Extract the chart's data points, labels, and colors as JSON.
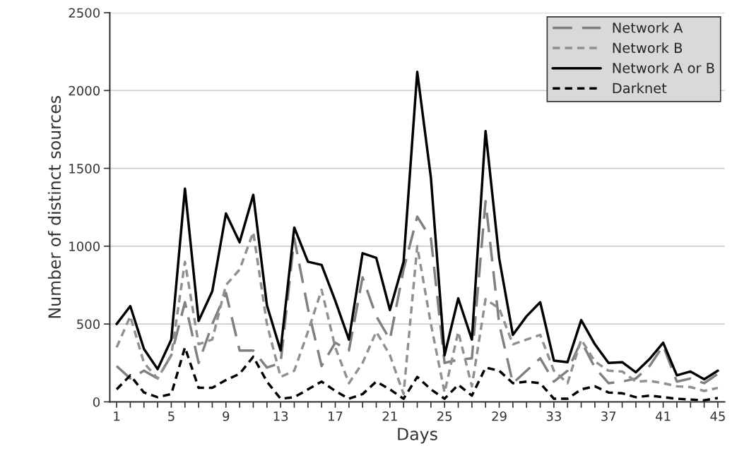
{
  "chart_data": {
    "type": "line",
    "xlabel": "Days",
    "ylabel": "Number of distinct sources",
    "x": [
      1,
      2,
      3,
      4,
      5,
      6,
      7,
      8,
      9,
      10,
      11,
      12,
      13,
      14,
      15,
      16,
      17,
      18,
      19,
      20,
      21,
      22,
      23,
      24,
      25,
      26,
      27,
      28,
      29,
      30,
      31,
      32,
      33,
      34,
      35,
      36,
      37,
      38,
      39,
      40,
      41,
      42,
      43,
      44,
      45
    ],
    "xlim": [
      0.5,
      45.5
    ],
    "xticks": [
      1,
      {
        "value": 2,
        "label": null
      },
      {
        "value": 3,
        "label": null
      },
      {
        "value": 4,
        "label": null
      },
      5,
      {
        "value": 6,
        "label": null
      },
      {
        "value": 7,
        "label": null
      },
      {
        "value": 8,
        "label": null
      },
      9,
      {
        "value": 10,
        "label": null
      },
      {
        "value": 11,
        "label": null
      },
      {
        "value": 12,
        "label": null
      },
      13,
      {
        "value": 14,
        "label": null
      },
      {
        "value": 15,
        "label": null
      },
      {
        "value": 16,
        "label": null
      },
      17,
      {
        "value": 18,
        "label": null
      },
      {
        "value": 19,
        "label": null
      },
      {
        "value": 20,
        "label": null
      },
      21,
      {
        "value": 22,
        "label": null
      },
      {
        "value": 23,
        "label": null
      },
      {
        "value": 24,
        "label": null
      },
      25,
      {
        "value": 26,
        "label": null
      },
      {
        "value": 27,
        "label": null
      },
      {
        "value": 28,
        "label": null
      },
      29,
      {
        "value": 30,
        "label": null
      },
      {
        "value": 31,
        "label": null
      },
      {
        "value": 32,
        "label": null
      },
      33,
      {
        "value": 34,
        "label": null
      },
      {
        "value": 35,
        "label": null
      },
      {
        "value": 36,
        "label": null
      },
      37,
      {
        "value": 38,
        "label": null
      },
      {
        "value": 39,
        "label": null
      },
      {
        "value": 40,
        "label": null
      },
      41,
      {
        "value": 42,
        "label": null
      },
      {
        "value": 43,
        "label": null
      },
      {
        "value": 44,
        "label": null
      },
      45
    ],
    "ylim": [
      0,
      2500
    ],
    "yticks": [
      0,
      500,
      1000,
      1500,
      2000,
      2500
    ],
    "grid": "y",
    "legend": "top right",
    "marker": "none",
    "series": [
      {
        "name": "Network A",
        "color": "#808080",
        "line_style": "dashed",
        "values": [
          230,
          150,
          200,
          150,
          300,
          640,
          250,
          500,
          700,
          330,
          330,
          220,
          250,
          1050,
          600,
          230,
          380,
          330,
          800,
          550,
          400,
          850,
          1190,
          1050,
          250,
          270,
          280,
          1290,
          500,
          120,
          200,
          280,
          130,
          200,
          390,
          220,
          120,
          130,
          150,
          230,
          360,
          130,
          150,
          120,
          180
        ]
      },
      {
        "name": "Network B",
        "color": "#909090",
        "line_style": "dotted",
        "values": [
          350,
          550,
          250,
          150,
          300,
          900,
          370,
          400,
          750,
          850,
          1090,
          500,
          160,
          200,
          450,
          720,
          350,
          120,
          250,
          450,
          300,
          50,
          1000,
          500,
          60,
          450,
          100,
          660,
          600,
          370,
          400,
          430,
          200,
          120,
          400,
          260,
          200,
          195,
          130,
          135,
          120,
          100,
          95,
          70,
          90
        ]
      },
      {
        "name": "Network A or B",
        "color": "#000000",
        "line_style": "solid",
        "values": [
          500,
          615,
          340,
          210,
          400,
          1370,
          520,
          710,
          1210,
          1025,
          1330,
          620,
          330,
          1120,
          900,
          880,
          650,
          400,
          955,
          925,
          590,
          900,
          2120,
          1440,
          300,
          665,
          400,
          1740,
          920,
          430,
          550,
          640,
          265,
          255,
          525,
          370,
          250,
          255,
          190,
          275,
          380,
          170,
          195,
          145,
          200
        ]
      },
      {
        "name": "Darknet",
        "color": "#000000",
        "line_style": "dotted",
        "values": [
          80,
          170,
          60,
          30,
          50,
          350,
          90,
          90,
          140,
          180,
          290,
          130,
          20,
          30,
          80,
          130,
          70,
          20,
          50,
          130,
          80,
          20,
          160,
          80,
          20,
          110,
          40,
          220,
          200,
          120,
          130,
          120,
          20,
          20,
          80,
          100,
          60,
          55,
          30,
          40,
          30,
          20,
          15,
          10,
          25
        ]
      }
    ]
  }
}
